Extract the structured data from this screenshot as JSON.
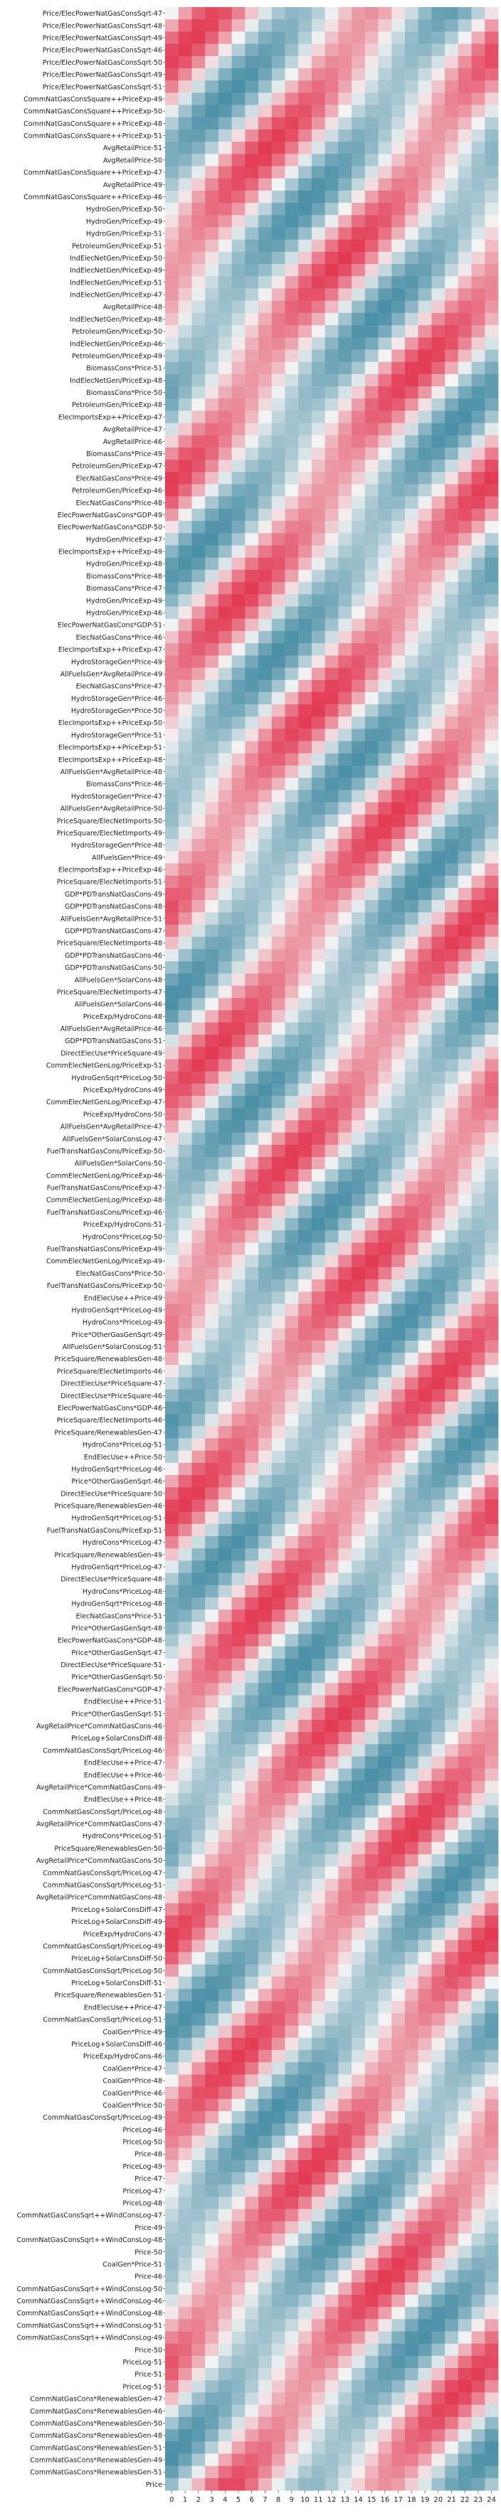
{
  "chart_data": {
    "type": "heatmap",
    "title": "",
    "xlabel": "",
    "ylabel": "",
    "x_categories": [
      "0",
      "1",
      "2",
      "3",
      "4",
      "5",
      "6",
      "7",
      "8",
      "9",
      "10",
      "11",
      "12",
      "13",
      "14",
      "15",
      "16",
      "17",
      "18",
      "19",
      "20",
      "21",
      "22",
      "23",
      "24"
    ],
    "y_categories": [
      "Price/ElecPowerNatGasConsSqrt-47",
      "Price/ElecPowerNatGasConsSqrt-48",
      "Price/ElecPowerNatGasConsSqrt-49",
      "Price/ElecPowerNatGasConsSqrt-46",
      "Price/ElecPowerNatGasConsSqrt-50",
      "Price/ElecPowerNatGasConsSqrt-49",
      "Price/ElecPowerNatGasConsSqrt-51",
      "CommNatGasConsSquare++PriceExp-49",
      "CommNatGasConsSquare++PriceExp-50",
      "CommNatGasConsSquare++PriceExp-48",
      "CommNatGasConsSquare++PriceExp-51",
      "AvgRetailPrice-51",
      "AvgRetailPrice-50",
      "CommNatGasConsSquare++PriceExp-47",
      "AvgRetailPrice-49",
      "CommNatGasConsSquare++PriceExp-46",
      "HydroGen/PriceExp-50",
      "HydroGen/PriceExp-49",
      "HydroGen/PriceExp-51",
      "PetroleumGen/PriceExp-51",
      "IndElecNetGen/PriceExp-50",
      "IndElecNetGen/PriceExp-49",
      "IndElecNetGen/PriceExp-51",
      "IndElecNetGen/PriceExp-47",
      "AvgRetailPrice-48",
      "IndElecNetGen/PriceExp-48",
      "PetroleumGen/PriceExp-50",
      "IndElecNetGen/PriceExp-46",
      "PetroleumGen/PriceExp-49",
      "BiomassCons*Price-51",
      "IndElecNetGen/PriceExp-48",
      "BiomassCons*Price-50",
      "PetroleumGen/PriceExp-48",
      "ElecImportsExp++PriceExp-47",
      "AvgRetailPrice-47",
      "AvgRetailPrice-46",
      "BiomassCons*Price-49",
      "PetroleumGen/PriceExp-47",
      "ElecNatGasCons*Price-49",
      "PetroleumGen/PriceExp-46",
      "ElecNatGasCons*Price-48",
      "ElecPowerNatGasCons*GDP-49",
      "ElecPowerNatGasCons*GDP-50",
      "HydroGen/PriceExp-47",
      "ElecImportsExp++PriceExp-49",
      "HydroGen/PriceExp-48",
      "BiomassCons*Price-48",
      "BiomassCons*Price-47",
      "HydroGen/PriceExp-49",
      "HydroGen/PriceExp-46",
      "ElecPowerNatGasCons*GDP-51",
      "ElecNatGasCons*Price-46",
      "ElecImportsExp++PriceExp-47",
      "HydroStorageGen*Price-49",
      "AllFuelsGen*AvgRetailPrice-49",
      "ElecNatGasCons*Price-47",
      "HydroStorageGen*Price-46",
      "HydroStorageGen*Price-50",
      "ElecImportsExp++PriceExp-50",
      "HydroStorageGen*Price-51",
      "ElecImportsExp++PriceExp-51",
      "ElecImportsExp++PriceExp-48",
      "AllFuelsGen*AvgRetailPrice-48",
      "BiomassCons*Price-46",
      "HydroStorageGen*Price-47",
      "AllFuelsGen*AvgRetailPrice-50",
      "PriceSquare/ElecNetImports-50",
      "PriceSquare/ElecNetImports-49",
      "HydroStorageGen*Price-48",
      "AllFuelsGen*Price-49",
      "ElecImportsExp++PriceExp-46",
      "PriceSquare/ElecNetImports-51",
      "GDP*PDTransNatGasCons-49",
      "GDP*PDTransNatGasCons-48",
      "AllFuelsGen*AvgRetailPrice-51",
      "GDP*PDTransNatGasCons-47",
      "PriceSquare/ElecNetImports-48",
      "GDP*PDTransNatGasCons-46",
      "GDP*PDTransNatGasCons-50",
      "AllFuelsGen*SolarCons-48",
      "PriceSquare/ElecNetImports-47",
      "AllFuelsGen*SolarCons-46",
      "PriceExp/HydroCons-48",
      "AllFuelsGen*AvgRetailPrice-46",
      "GDP*PDTransNatGasCons-51",
      "DirectElecUse*PriceSquare-49",
      "CommElecNetGenLog/PriceExp-51",
      "HydroGenSqrt*PriceLog-50",
      "PriceExp/HydroCons-49",
      "CommElecNetGenLog/PriceExp-47",
      "PriceExp/HydroCons-50",
      "AllFuelsGen*AvgRetailPrice-47",
      "AllFuelsGen*SolarConsLog-47",
      "FuelTransNatGasCons/PriceExp-50",
      "AllFuelsGen*SolarCons-50",
      "CommElecNetGenLog/PriceExp-46",
      "FuelTransNatGasCons/PriceExp-47",
      "CommElecNetGenLog/PriceExp-48",
      "FuelTransNatGasCons/PriceExp-46",
      "PriceExp/HydroCons-51",
      "HydroCons*PriceLog-50",
      "FuelTransNatGasCons/PriceExp-49",
      "CommElecNetGenLog/PriceExp-49",
      "ElecNatGasCons*Price-50",
      "FuelTransNatGasCons/PriceExp-50",
      "EndElecUse++Price-49",
      "HydroGenSqrt*PriceLog-49",
      "HydroCons*PriceLog-49",
      "Price*OtherGasGenSqrt-49",
      "AllFuelsGen*SolarConsLog-51",
      "PriceSquare/RenewablesGen-48",
      "PriceSquare/ElecNetImports-46",
      "DirectElecUse*PriceSquare-47",
      "DirectElecUse*PriceSquare-46",
      "ElecPowerNatGasCons*GDP-46",
      "PriceSquare/ElecNetImports-46",
      "PriceSquare/RenewablesGen-47",
      "HydroCons*PriceLog-51",
      "EndElecUse++Price-50",
      "HydroGenSqrt*PriceLog-46",
      "Price*OtherGasGenSqrt-46",
      "DirectElecUse*PriceSquare-50",
      "PriceSquare/RenewablesGen-46",
      "HydroGenSqrt*PriceLog-51",
      "FuelTransNatGasCons/PriceExp-51",
      "HydroCons*PriceLog-47",
      "PriceSquare/RenewablesGen-49",
      "HydroGenSqrt*PriceLog-47",
      "DirectElecUse*PriceSquare-48",
      "HydroCons*PriceLog-48",
      "HydroGenSqrt*PriceLog-48",
      "ElecNatGasCons*Price-51",
      "Price*OtherGasGenSqrt-48",
      "ElecPowerNatGasCons*GDP-48",
      "Price*OtherGasGenSqrt-47",
      "DirectElecUse*PriceSquare-51",
      "Price*OtherGasGenSqrt-50",
      "ElecPowerNatGasCons*GDP-47",
      "EndElecUse++Price-51",
      "Price*OtherGasGenSqrt-51",
      "AvgRetailPrice*CommNatGasCons-46",
      "PriceLog+SolarConsDiff-48",
      "CommNatGasConsSqrt/PriceLog-46",
      "EndElecUse++Price-47",
      "EndElecUse++Price-46",
      "AvgRetailPrice*CommNatGasCons-49",
      "EndElecUse++Price-48",
      "CommNatGasConsSqrt/PriceLog-48",
      "AvgRetailPrice*CommNatGasCons-47",
      "HydroCons*PriceLog-51",
      "PriceSquare/RenewablesGen-50",
      "AvgRetailPrice*CommNatGasCons-50",
      "CommNatGasConsSqrt/PriceLog-47",
      "CommNatGasConsSqrt/PriceLog-51",
      "AvgRetailPrice*CommNatGasCons-48",
      "PriceLog+SolarConsDiff-47",
      "PriceLog+SolarConsDiff-49",
      "PriceExp/HydroCons-47",
      "CommNatGasConsSqrt/PriceLog-49",
      "PriceLog+SolarConsDiff-50",
      "CommNatGasConsSqrt/PriceLog-50",
      "PriceLog+SolarConsDiff-51",
      "PriceSquare/RenewablesGen-51",
      "EndElecUse++Price-47",
      "CommNatGasConsSqrt/PriceLog-51",
      "CoalGen*Price-49",
      "PriceLog+SolarConsDiff-46",
      "PriceExp/HydroCons-46",
      "CoalGen*Price-47",
      "CoalGen*Price-48",
      "CoalGen*Price-46",
      "CoalGen*Price-50",
      "CommNatGasConsSqrt/PriceLog-49",
      "PriceLog-46",
      "PriceLog-50",
      "Price-48",
      "PriceLog-49",
      "Price-47",
      "PriceLog-47",
      "PriceLog-48",
      "CommNatGasConsSqrt++WindConsLog-47",
      "Price-49",
      "CommNatGasConsSqrt++WindConsLog-48",
      "Price-50",
      "CoalGen*Price-51",
      "Price-46",
      "CommNatGasConsSqrt++WindConsLog-50",
      "CommNatGasConsSqrt++WindConsLog-46",
      "CommNatGasConsSqrt++WindConsLog-48",
      "CommNatGasConsSqrt++WindConsLog-51",
      "CommNatGasConsSqrt++WindConsLog-49",
      "Price-50",
      "PriceLog-51",
      "Price-51",
      "PriceLog-51",
      "CommNatGasCons*RenewablesGen-47",
      "CommNatGasCons*RenewablesGen-46",
      "CommNatGasCons*RenewablesGen-50",
      "CommNatGasCons*RenewablesGen-48",
      "CommNatGasCons*RenewablesGen-51",
      "CommNatGasCons*RenewablesGen-49",
      "CommNatGasCons*RenewablesGen-51",
      "Price"
    ],
    "colormap": {
      "low": "#4a8fa6",
      "mid": "#f4f4f4",
      "high": "#e23a53"
    },
    "value_range": [
      -1,
      1
    ],
    "values_note": "",
    "values": []
  }
}
